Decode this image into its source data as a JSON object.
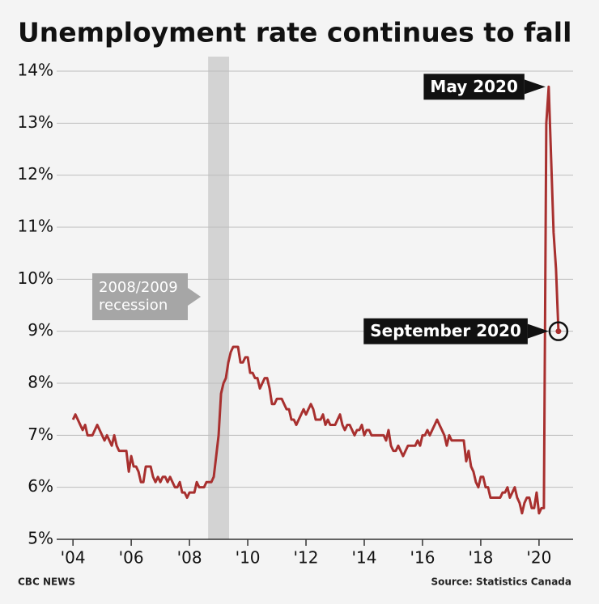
{
  "chart_data": {
    "type": "line",
    "title": "Unemployment rate continues to fall",
    "x": [
      2004,
      2004.083,
      2004.167,
      2004.25,
      2004.333,
      2004.417,
      2004.5,
      2004.583,
      2004.667,
      2004.75,
      2004.833,
      2004.917,
      2005,
      2005.083,
      2005.167,
      2005.25,
      2005.333,
      2005.417,
      2005.5,
      2005.583,
      2005.667,
      2005.75,
      2005.833,
      2005.917,
      2006,
      2006.083,
      2006.167,
      2006.25,
      2006.333,
      2006.417,
      2006.5,
      2006.583,
      2006.667,
      2006.75,
      2006.833,
      2006.917,
      2007,
      2007.083,
      2007.167,
      2007.25,
      2007.333,
      2007.417,
      2007.5,
      2007.583,
      2007.667,
      2007.75,
      2007.833,
      2007.917,
      2008,
      2008.083,
      2008.167,
      2008.25,
      2008.333,
      2008.417,
      2008.5,
      2008.583,
      2008.667,
      2008.75,
      2008.833,
      2008.917,
      2009,
      2009.083,
      2009.167,
      2009.25,
      2009.333,
      2009.417,
      2009.5,
      2009.583,
      2009.667,
      2009.75,
      2009.833,
      2009.917,
      2010,
      2010.083,
      2010.167,
      2010.25,
      2010.333,
      2010.417,
      2010.5,
      2010.583,
      2010.667,
      2010.75,
      2010.833,
      2010.917,
      2011,
      2011.083,
      2011.167,
      2011.25,
      2011.333,
      2011.417,
      2011.5,
      2011.583,
      2011.667,
      2011.75,
      2011.833,
      2011.917,
      2012,
      2012.083,
      2012.167,
      2012.25,
      2012.333,
      2012.417,
      2012.5,
      2012.583,
      2012.667,
      2012.75,
      2012.833,
      2012.917,
      2013,
      2013.083,
      2013.167,
      2013.25,
      2013.333,
      2013.417,
      2013.5,
      2013.583,
      2013.667,
      2013.75,
      2013.833,
      2013.917,
      2014,
      2014.083,
      2014.167,
      2014.25,
      2014.333,
      2014.417,
      2014.5,
      2014.583,
      2014.667,
      2014.75,
      2014.833,
      2014.917,
      2015,
      2015.083,
      2015.167,
      2015.25,
      2015.333,
      2015.417,
      2015.5,
      2015.583,
      2015.667,
      2015.75,
      2015.833,
      2015.917,
      2016,
      2016.083,
      2016.167,
      2016.25,
      2016.333,
      2016.417,
      2016.5,
      2016.583,
      2016.667,
      2016.75,
      2016.833,
      2016.917,
      2017,
      2017.083,
      2017.167,
      2017.25,
      2017.333,
      2017.417,
      2017.5,
      2017.583,
      2017.667,
      2017.75,
      2017.833,
      2017.917,
      2018,
      2018.083,
      2018.167,
      2018.25,
      2018.333,
      2018.417,
      2018.5,
      2018.583,
      2018.667,
      2018.75,
      2018.833,
      2018.917,
      2019,
      2019.083,
      2019.167,
      2019.25,
      2019.333,
      2019.417,
      2019.5,
      2019.583,
      2019.667,
      2019.75,
      2019.833,
      2019.917,
      2020,
      2020.083,
      2020.167,
      2020.25,
      2020.333,
      2020.417,
      2020.5,
      2020.583,
      2020.667
    ],
    "values": [
      7.3,
      7.4,
      7.3,
      7.2,
      7.1,
      7.2,
      7.0,
      7.0,
      7.0,
      7.1,
      7.2,
      7.1,
      7.0,
      6.9,
      7.0,
      6.9,
      6.8,
      7.0,
      6.8,
      6.7,
      6.7,
      6.7,
      6.7,
      6.3,
      6.6,
      6.4,
      6.4,
      6.3,
      6.1,
      6.1,
      6.4,
      6.4,
      6.4,
      6.2,
      6.1,
      6.2,
      6.1,
      6.2,
      6.2,
      6.1,
      6.2,
      6.1,
      6.0,
      6.0,
      6.1,
      5.9,
      5.9,
      5.8,
      5.9,
      5.9,
      5.9,
      6.1,
      6.0,
      6.0,
      6.0,
      6.1,
      6.1,
      6.1,
      6.2,
      6.6,
      7.0,
      7.8,
      8.0,
      8.1,
      8.4,
      8.6,
      8.7,
      8.7,
      8.7,
      8.4,
      8.4,
      8.5,
      8.5,
      8.2,
      8.2,
      8.1,
      8.1,
      7.9,
      8.0,
      8.1,
      8.1,
      7.9,
      7.6,
      7.6,
      7.7,
      7.7,
      7.7,
      7.6,
      7.5,
      7.5,
      7.3,
      7.3,
      7.2,
      7.3,
      7.4,
      7.5,
      7.4,
      7.5,
      7.6,
      7.5,
      7.3,
      7.3,
      7.3,
      7.4,
      7.2,
      7.3,
      7.2,
      7.2,
      7.2,
      7.3,
      7.4,
      7.2,
      7.1,
      7.2,
      7.2,
      7.1,
      7.0,
      7.1,
      7.1,
      7.2,
      7.0,
      7.1,
      7.1,
      7.0,
      7.0,
      7.0,
      7.0,
      7.0,
      7.0,
      6.9,
      7.1,
      6.8,
      6.7,
      6.7,
      6.8,
      6.7,
      6.6,
      6.7,
      6.8,
      6.8,
      6.8,
      6.8,
      6.9,
      6.8,
      7.0,
      7.0,
      7.1,
      7.0,
      7.1,
      7.2,
      7.3,
      7.2,
      7.1,
      7.0,
      6.8,
      7.0,
      6.9,
      6.9,
      6.9,
      6.9,
      6.9,
      6.9,
      6.5,
      6.7,
      6.4,
      6.3,
      6.1,
      6.0,
      6.2,
      6.2,
      6.0,
      6.0,
      5.8,
      5.8,
      5.8,
      5.8,
      5.8,
      5.9,
      5.9,
      6.0,
      5.8,
      5.9,
      6.0,
      5.8,
      5.7,
      5.5,
      5.7,
      5.8,
      5.8,
      5.6,
      5.6,
      5.9,
      5.5,
      5.6,
      5.6,
      13.0,
      13.7,
      12.3,
      10.9,
      10.2,
      9.0
    ],
    "color": "#a8302f",
    "xlim": [
      2003.44,
      2021.17
    ],
    "xticks": [
      {
        "value": 2004,
        "label": "'04"
      },
      {
        "value": 2006,
        "label": "'06"
      },
      {
        "value": 2008,
        "label": "'08"
      },
      {
        "value": 2010,
        "label": "'10"
      },
      {
        "value": 2012,
        "label": "'12"
      },
      {
        "value": 2014,
        "label": "'14"
      },
      {
        "value": 2016,
        "label": "'16"
      },
      {
        "value": 2018,
        "label": "'18"
      },
      {
        "value": 2020,
        "label": "'20"
      }
    ],
    "ylim": [
      5,
      14.28
    ],
    "yticks": [
      {
        "value": 5,
        "label": "5%"
      },
      {
        "value": 6,
        "label": "6%"
      },
      {
        "value": 7,
        "label": "7%"
      },
      {
        "value": 8,
        "label": "8%"
      },
      {
        "value": 9,
        "label": "9%"
      },
      {
        "value": 10,
        "label": "10%"
      },
      {
        "value": 11,
        "label": "11%"
      },
      {
        "value": 12,
        "label": "12%"
      },
      {
        "value": 13,
        "label": "13%"
      },
      {
        "value": 14,
        "label": "14%"
      }
    ],
    "grid": true,
    "recession": {
      "label": "2008/2009 recession",
      "start": 2008.64,
      "end": 2009.36
    },
    "annotations": [
      {
        "text": "May 2020",
        "x": 2020.333
      },
      {
        "text": "September 2020",
        "x": 2020.667
      }
    ],
    "credit": "CBC NEWS",
    "source": "Source: Statistics Canada"
  }
}
